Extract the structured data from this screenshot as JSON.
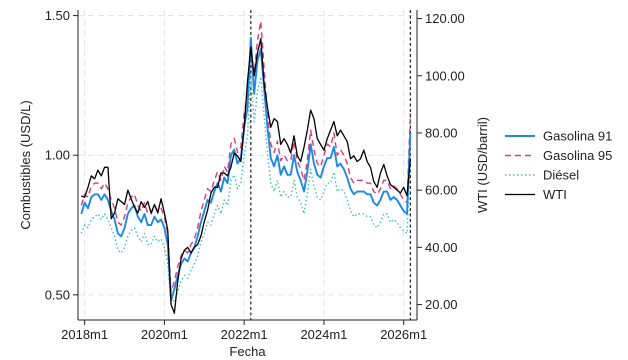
{
  "chart_data": {
    "type": "line",
    "xlabel": "Fecha",
    "ylabel_left": "Combustibles (USD/L)",
    "ylabel_right": "WTI (USD/barril)",
    "x_start": "2017m11",
    "x_end": "2026m5",
    "x_ticks": [
      "2018m1",
      "2020m1",
      "2022m1",
      "2024m1",
      "2026m1"
    ],
    "y_left_ticks": [
      "0.50",
      "1.00",
      "1.50"
    ],
    "y_right_ticks": [
      "20.00",
      "40.00",
      "60.00",
      "80.00",
      "100.00",
      "120.00"
    ],
    "y_left_lim": [
      0.41,
      1.52
    ],
    "y_right_lim": [
      14.6,
      123.0
    ],
    "grid": true,
    "legend_position": "right",
    "vlines": [
      "2022m3",
      "2026m3"
    ],
    "x": [
      "2017m12",
      "2018m1",
      "2018m2",
      "2018m3",
      "2018m4",
      "2018m5",
      "2018m6",
      "2018m7",
      "2018m8",
      "2018m9",
      "2018m10",
      "2018m11",
      "2018m12",
      "2019m1",
      "2019m2",
      "2019m3",
      "2019m4",
      "2019m5",
      "2019m6",
      "2019m7",
      "2019m8",
      "2019m9",
      "2019m10",
      "2019m11",
      "2019m12",
      "2020m1",
      "2020m2",
      "2020m3",
      "2020m4",
      "2020m5",
      "2020m6",
      "2020m7",
      "2020m8",
      "2020m9",
      "2020m10",
      "2020m11",
      "2020m12",
      "2021m1",
      "2021m2",
      "2021m3",
      "2021m4",
      "2021m5",
      "2021m6",
      "2021m7",
      "2021m8",
      "2021m9",
      "2021m10",
      "2021m11",
      "2021m12",
      "2022m1",
      "2022m2",
      "2022m3",
      "2022m4",
      "2022m5",
      "2022m6",
      "2022m7",
      "2022m8",
      "2022m9",
      "2022m10",
      "2022m11",
      "2022m12",
      "2023m1",
      "2023m2",
      "2023m3",
      "2023m4",
      "2023m5",
      "2023m6",
      "2023m7",
      "2023m8",
      "2023m9",
      "2023m10",
      "2023m11",
      "2023m12",
      "2024m1",
      "2024m2",
      "2024m3",
      "2024m4",
      "2024m5",
      "2024m6",
      "2024m7",
      "2024m8",
      "2024m9",
      "2024m10",
      "2024m11",
      "2024m12",
      "2025m1",
      "2025m2",
      "2025m3",
      "2025m4",
      "2025m5",
      "2025m6",
      "2025m7",
      "2025m8",
      "2025m9",
      "2025m10",
      "2025m11",
      "2025m12",
      "2026m1",
      "2026m2",
      "2026m3"
    ],
    "series": [
      {
        "name": "Gasolina 91",
        "axis": "left",
        "color": "#1e88e5",
        "style": "solid",
        "values": [
          0.79,
          0.83,
          0.81,
          0.85,
          0.86,
          0.86,
          0.84,
          0.86,
          0.84,
          0.8,
          0.77,
          0.72,
          0.71,
          0.74,
          0.79,
          0.81,
          0.82,
          0.78,
          0.76,
          0.79,
          0.75,
          0.75,
          0.78,
          0.76,
          0.77,
          0.74,
          0.68,
          0.48,
          0.52,
          0.57,
          0.61,
          0.63,
          0.62,
          0.65,
          0.67,
          0.71,
          0.76,
          0.8,
          0.84,
          0.83,
          0.87,
          0.9,
          0.87,
          0.92,
          0.9,
          1.0,
          1.02,
          0.97,
          0.99,
          1.1,
          1.17,
          1.42,
          1.22,
          1.34,
          1.38,
          1.24,
          1.1,
          0.99,
          0.96,
          1.0,
          0.93,
          0.96,
          0.93,
          0.93,
          1.0,
          0.94,
          0.91,
          0.87,
          0.94,
          1.04,
          0.97,
          0.93,
          0.92,
          0.96,
          0.99,
          0.99,
          1.03,
          0.96,
          0.97,
          0.95,
          0.92,
          0.88,
          0.86,
          0.87,
          0.87,
          0.87,
          0.86,
          0.86,
          0.83,
          0.82,
          0.84,
          0.87,
          0.87,
          0.84,
          0.85,
          0.84,
          0.82,
          0.8,
          0.79,
          1.08
        ]
      },
      {
        "name": "Gasolina 95",
        "axis": "left",
        "color": "#dc3c78",
        "style": "dashed",
        "values": [
          0.82,
          0.86,
          0.85,
          0.89,
          0.9,
          0.9,
          0.88,
          0.9,
          0.88,
          0.84,
          0.81,
          0.76,
          0.75,
          0.78,
          0.83,
          0.85,
          0.86,
          0.82,
          0.8,
          0.83,
          0.79,
          0.79,
          0.82,
          0.8,
          0.81,
          0.78,
          0.72,
          0.51,
          0.55,
          0.6,
          0.64,
          0.66,
          0.65,
          0.68,
          0.7,
          0.74,
          0.8,
          0.84,
          0.88,
          0.87,
          0.91,
          0.94,
          0.91,
          0.96,
          0.94,
          1.04,
          1.06,
          1.01,
          1.03,
          1.15,
          1.22,
          1.38,
          1.29,
          1.41,
          1.48,
          1.31,
          1.15,
          1.04,
          1.01,
          1.05,
          0.98,
          1.0,
          0.98,
          0.98,
          1.05,
          0.98,
          0.95,
          0.91,
          0.98,
          1.09,
          1.02,
          0.97,
          0.96,
          1.0,
          1.04,
          1.03,
          1.08,
          1.0,
          1.02,
          1.0,
          0.97,
          0.92,
          0.9,
          0.91,
          0.91,
          0.91,
          0.9,
          0.9,
          0.87,
          0.86,
          0.88,
          0.91,
          0.91,
          0.88,
          0.89,
          0.88,
          0.86,
          0.84,
          0.83,
          1.15
        ]
      },
      {
        "name": "Diésel",
        "axis": "left",
        "color": "#40c0b4",
        "style": "dotted",
        "values": [
          0.72,
          0.75,
          0.74,
          0.77,
          0.78,
          0.79,
          0.77,
          0.79,
          0.77,
          0.74,
          0.71,
          0.66,
          0.65,
          0.67,
          0.71,
          0.73,
          0.74,
          0.71,
          0.69,
          0.72,
          0.68,
          0.68,
          0.71,
          0.69,
          0.7,
          0.67,
          0.61,
          0.47,
          0.48,
          0.51,
          0.55,
          0.57,
          0.56,
          0.59,
          0.61,
          0.64,
          0.69,
          0.72,
          0.76,
          0.75,
          0.79,
          0.82,
          0.79,
          0.84,
          0.82,
          0.91,
          0.93,
          0.88,
          0.9,
          1.0,
          1.07,
          1.29,
          1.12,
          1.23,
          1.28,
          1.14,
          1.01,
          0.9,
          0.87,
          0.91,
          0.85,
          0.87,
          0.85,
          0.85,
          0.91,
          0.85,
          0.83,
          0.79,
          0.86,
          0.95,
          0.89,
          0.85,
          0.84,
          0.87,
          0.9,
          0.9,
          0.94,
          0.87,
          0.88,
          0.87,
          0.84,
          0.8,
          0.78,
          0.79,
          0.79,
          0.79,
          0.78,
          0.78,
          0.75,
          0.74,
          0.76,
          0.79,
          0.79,
          0.76,
          0.77,
          0.76,
          0.74,
          0.73,
          0.72,
          0.99
        ]
      },
      {
        "name": "WTI",
        "axis": "right",
        "color": "#000000",
        "style": "solid",
        "values": [
          58,
          57.5,
          61,
          65,
          64,
          67,
          65,
          68,
          68,
          50,
          52,
          57,
          56,
          55,
          60,
          57,
          54,
          52,
          56,
          54,
          56,
          52,
          55,
          52,
          57,
          52,
          46,
          20,
          17,
          28,
          36,
          39,
          40,
          38,
          40,
          41,
          44,
          49,
          53,
          59,
          61,
          61,
          66,
          66,
          65,
          68,
          73,
          72,
          70,
          82,
          98,
          110,
          100,
          108,
          113,
          97,
          89,
          82,
          85,
          84,
          76,
          78,
          76,
          73,
          79,
          72,
          70,
          75,
          81,
          88,
          85,
          78,
          76,
          74,
          78,
          81,
          84,
          79,
          81,
          79,
          77,
          71,
          72,
          70,
          71,
          74,
          70,
          68,
          63,
          61,
          66,
          69,
          65,
          62,
          61,
          60,
          59,
          61,
          58,
          71
        ]
      }
    ]
  }
}
